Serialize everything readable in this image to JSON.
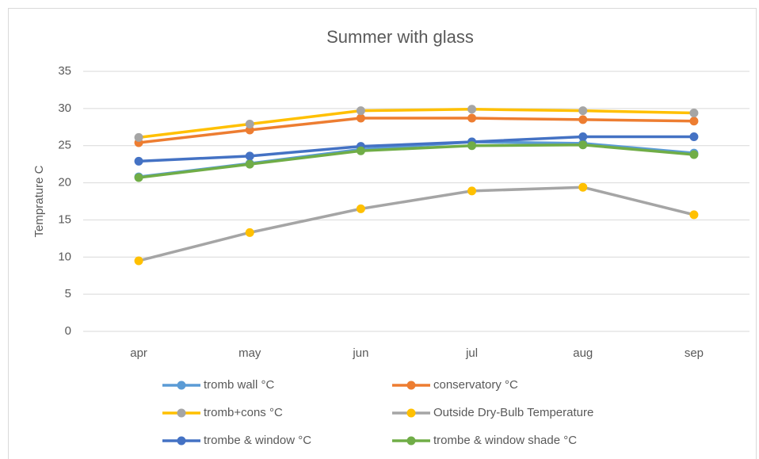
{
  "chart_data": {
    "type": "line",
    "title": "Summer with glass",
    "y_label": "Temprature C",
    "categories": [
      "apr",
      "may",
      "jun",
      "jul",
      "aug",
      "sep"
    ],
    "ylim": [
      0,
      35
    ],
    "yticks": [
      0,
      5,
      10,
      15,
      20,
      25,
      30,
      35
    ],
    "grid": true,
    "legend": "bottom",
    "series": [
      {
        "name": "tromb wall °C",
        "color": "#5b9bd5",
        "marker_color": "#5b9bd5",
        "values": [
          20.8,
          22.6,
          24.5,
          25.5,
          25.3,
          24.0
        ]
      },
      {
        "name": "conservatory °C",
        "color": "#ed7d31",
        "marker_color": "#ed7d31",
        "values": [
          25.4,
          27.1,
          28.7,
          28.7,
          28.5,
          28.3
        ]
      },
      {
        "name": "tromb+cons °C",
        "color": "#ffc000",
        "marker_color": "#a5a5a5",
        "values": [
          26.1,
          27.9,
          29.7,
          29.9,
          29.7,
          29.4
        ]
      },
      {
        "name": "Outside Dry-Bulb Temperature",
        "color": "#a5a5a5",
        "marker_color": "#ffc000",
        "values": [
          9.5,
          13.3,
          16.5,
          18.9,
          19.4,
          15.7
        ]
      },
      {
        "name": "trombe & window °C",
        "color": "#4472c4",
        "marker_color": "#4472c4",
        "values": [
          22.9,
          23.6,
          24.9,
          25.5,
          26.2,
          26.2
        ]
      },
      {
        "name": "trombe & window shade °C",
        "color": "#70ad47",
        "marker_color": "#70ad47",
        "values": [
          20.7,
          22.5,
          24.3,
          25.0,
          25.1,
          23.8
        ]
      }
    ]
  }
}
